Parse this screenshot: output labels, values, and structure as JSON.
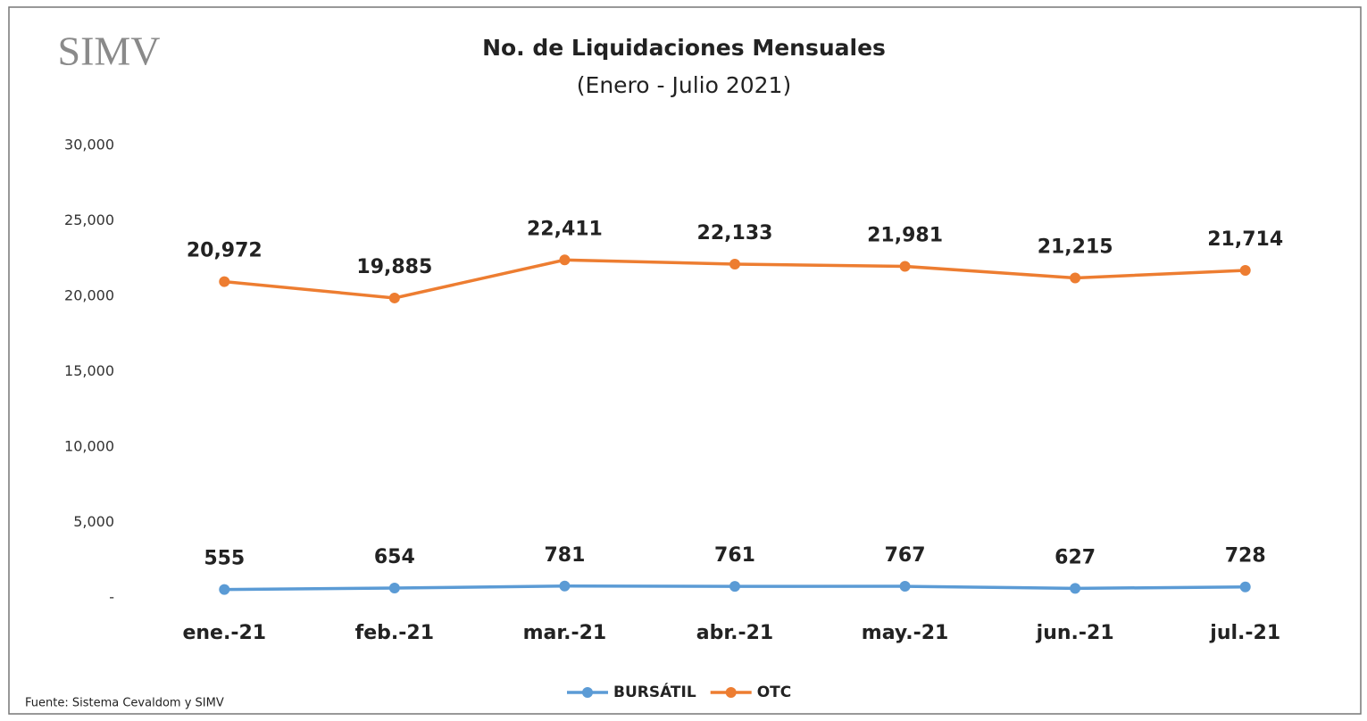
{
  "chart_data": {
    "type": "line",
    "logo": "SIMV",
    "title": "No. de Liquidaciones Mensuales",
    "subtitle": "(Enero - Julio 2021)",
    "source": "Fuente: Sistema Cevaldom y SIMV",
    "categories": [
      "ene.-21",
      "feb.-21",
      "mar.-21",
      "abr.-21",
      "may.-21",
      "jun.-21",
      "jul.-21"
    ],
    "series": [
      {
        "name": "BURSÁTIL",
        "color": "#5b9bd5",
        "values": [
          555,
          654,
          781,
          761,
          767,
          627,
          728
        ]
      },
      {
        "name": "OTC",
        "color": "#ed7d31",
        "values": [
          20972,
          19885,
          22411,
          22133,
          21981,
          21215,
          21714
        ],
        "value_labels": [
          "20,972",
          "19,885",
          "22,411",
          "22,133",
          "21,981",
          "21,215",
          "21,714"
        ]
      }
    ],
    "ylim": [
      0,
      30000
    ],
    "yticks": [
      {
        "value": 0,
        "label": "-"
      },
      {
        "value": 5000,
        "label": "5,000"
      },
      {
        "value": 10000,
        "label": "10,000"
      },
      {
        "value": 15000,
        "label": "15,000"
      },
      {
        "value": 20000,
        "label": "20,000"
      },
      {
        "value": 25000,
        "label": "25,000"
      },
      {
        "value": 30000,
        "label": "30,000"
      }
    ],
    "grid": false,
    "legend": "bottom"
  }
}
